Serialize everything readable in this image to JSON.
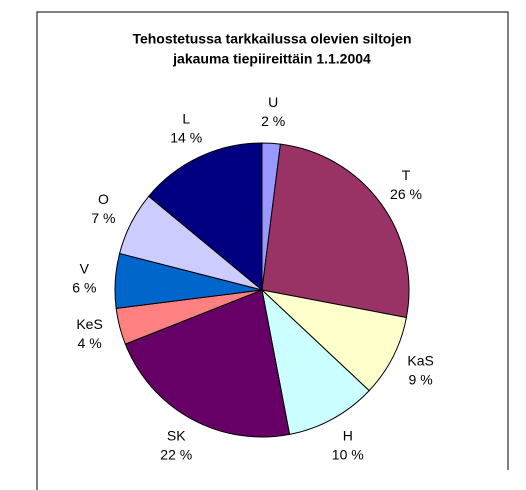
{
  "chart_data": {
    "type": "pie",
    "title": [
      "Tehostetussa tarkkailussa olevien siltojen",
      "jakauma tiepiireittäin 1.1.2004"
    ],
    "categories": [
      "U",
      "T",
      "KaS",
      "H",
      "SK",
      "KeS",
      "V",
      "O",
      "L"
    ],
    "values": [
      2,
      26,
      9,
      10,
      22,
      4,
      6,
      7,
      14
    ],
    "value_labels": [
      "2 %",
      "26 %",
      "9 %",
      "10 %",
      "22 %",
      "4 %",
      "6 %",
      "7 %",
      "14 %"
    ],
    "colors": [
      "#9999FF",
      "#993366",
      "#FFFFCC",
      "#CCFFFF",
      "#660066",
      "#FF8080",
      "#0066CC",
      "#CCCCFF",
      "#000080"
    ]
  }
}
